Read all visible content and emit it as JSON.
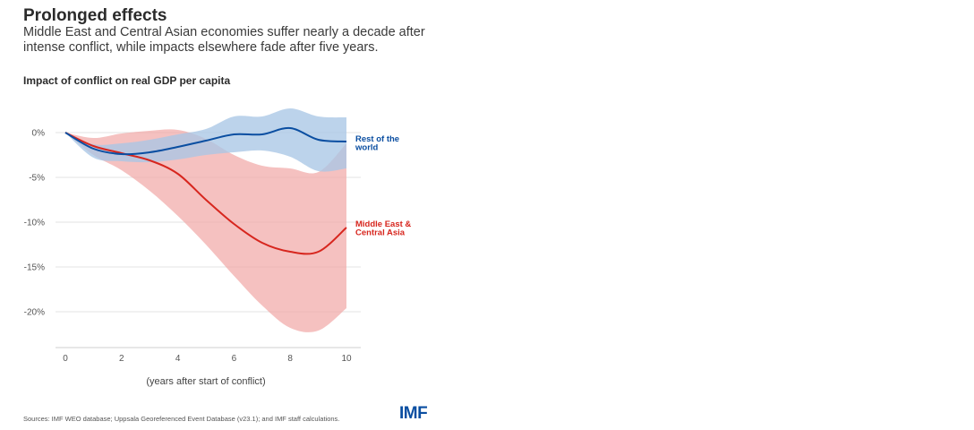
{
  "header": {
    "title": "Prolonged effects",
    "subtitle": "Middle East and Central Asian economies suffer nearly a decade after intense conflict, while impacts elsewhere fade after five years."
  },
  "footer": {
    "sources": "Sources: IMF WEO database; Uppsala Georeferenced Event Database (v23.1); and IMF staff calculations.",
    "logo": "IMF"
  },
  "chart_data": {
    "type": "area",
    "title": "Impact of conflict on real GDP per capita",
    "xlabel": "(years after start of conflict)",
    "ylabel": "",
    "xlim": [
      0,
      10
    ],
    "ylim": [
      -24,
      3
    ],
    "xticks": [
      0,
      2,
      4,
      6,
      8,
      10
    ],
    "xtick_labels": [
      "0",
      "2",
      "4",
      "6",
      "8",
      "10"
    ],
    "yticks": [
      0,
      -5,
      -10,
      -15,
      -20
    ],
    "ytick_labels": [
      "0%",
      "-5%",
      "-10%",
      "-15%",
      "-20%"
    ],
    "grid": true,
    "series": [
      {
        "name": "Rest of the world",
        "label_lines": [
          "Rest of the",
          "world"
        ],
        "color": "#0a4ea1",
        "band_color": "#a9c6e6",
        "x": [
          0,
          1,
          2,
          3,
          4,
          5,
          6,
          7,
          8,
          9,
          10
        ],
        "values": [
          0,
          -1.8,
          -2.4,
          -2.2,
          -1.6,
          -0.9,
          -0.2,
          -0.2,
          0.5,
          -0.8,
          -1.0
        ],
        "lower": [
          0,
          -2.8,
          -3.2,
          -3.3,
          -3.0,
          -2.5,
          -2.2,
          -2.0,
          -2.7,
          -4.3,
          -4.0
        ],
        "upper": [
          0,
          -1.3,
          -1.2,
          -0.8,
          -0.2,
          0.4,
          1.8,
          1.8,
          2.7,
          1.8,
          1.7
        ]
      },
      {
        "name": "Middle East & Central Asia",
        "label_lines": [
          "Middle East &",
          "Central Asia"
        ],
        "color": "#d7261e",
        "band_color": "#f1a7a5",
        "x": [
          0,
          1,
          2,
          3,
          4,
          5,
          6,
          7,
          8,
          9,
          10
        ],
        "values": [
          0,
          -1.5,
          -2.3,
          -3.1,
          -4.6,
          -7.5,
          -10.2,
          -12.3,
          -13.3,
          -13.3,
          -10.6
        ],
        "lower": [
          0,
          -2.5,
          -4.2,
          -6.5,
          -9.3,
          -12.5,
          -16.0,
          -19.3,
          -21.8,
          -22.1,
          -19.6
        ],
        "upper": [
          0,
          -0.6,
          -0.1,
          0.2,
          0.3,
          -0.7,
          -2.5,
          -3.7,
          -4.0,
          -4.4,
          -1.2
        ]
      }
    ]
  }
}
